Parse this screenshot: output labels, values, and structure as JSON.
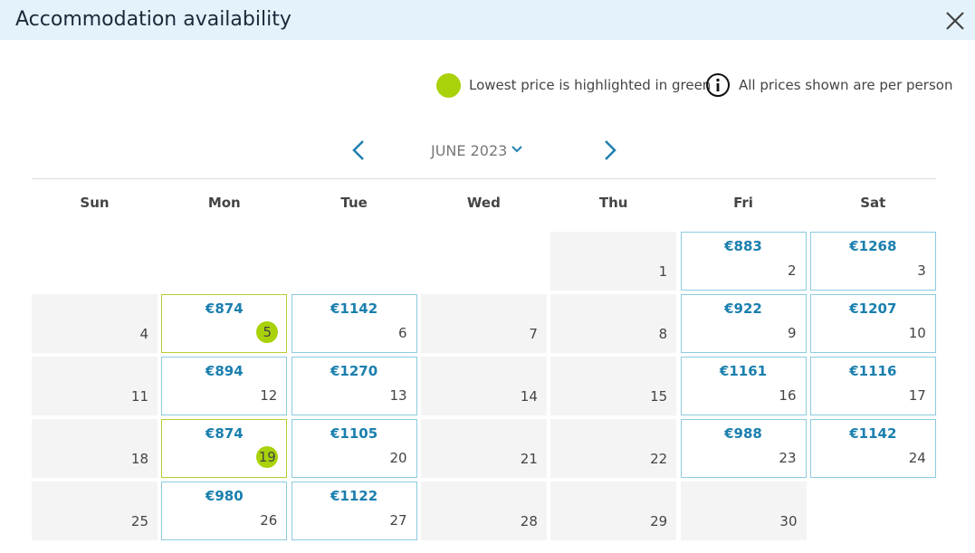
{
  "header": {
    "title": "Accommodation availability"
  },
  "legend": {
    "lowest": "Lowest price is highlighted in green",
    "per_person": "All prices shown are per person"
  },
  "calendar": {
    "month": "JUNE 2023",
    "weekdays": [
      "Sun",
      "Mon",
      "Tue",
      "Wed",
      "Thu",
      "Fri",
      "Sat"
    ],
    "weeks": [
      [
        null,
        null,
        null,
        null,
        {
          "day": 1
        },
        {
          "day": 2,
          "price": "€883"
        },
        {
          "day": 3,
          "price": "€1268"
        }
      ],
      [
        {
          "day": 4
        },
        {
          "day": 5,
          "price": "€874",
          "lowest": true
        },
        {
          "day": 6,
          "price": "€1142"
        },
        {
          "day": 7
        },
        {
          "day": 8
        },
        {
          "day": 9,
          "price": "€922"
        },
        {
          "day": 10,
          "price": "€1207"
        }
      ],
      [
        {
          "day": 11
        },
        {
          "day": 12,
          "price": "€894"
        },
        {
          "day": 13,
          "price": "€1270"
        },
        {
          "day": 14
        },
        {
          "day": 15
        },
        {
          "day": 16,
          "price": "€1161"
        },
        {
          "day": 17,
          "price": "€1116"
        }
      ],
      [
        {
          "day": 18
        },
        {
          "day": 19,
          "price": "€874",
          "lowest": true
        },
        {
          "day": 20,
          "price": "€1105"
        },
        {
          "day": 21
        },
        {
          "day": 22
        },
        {
          "day": 23,
          "price": "€988"
        },
        {
          "day": 24,
          "price": "€1142"
        }
      ],
      [
        {
          "day": 25
        },
        {
          "day": 26,
          "price": "€980"
        },
        {
          "day": 27,
          "price": "€1122"
        },
        {
          "day": 28
        },
        {
          "day": 29
        },
        {
          "day": 30
        },
        null
      ]
    ]
  }
}
